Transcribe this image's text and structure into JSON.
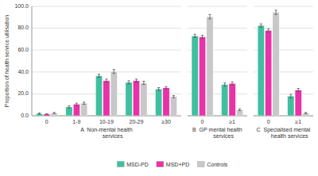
{
  "chart_data": [
    {
      "type": "bar",
      "xlabel": "A  Non-mental health\n        services",
      "ylabel": "Proportion of health service utilisation",
      "categories": [
        "0",
        "1-9",
        "10-19",
        "20-29",
        "≥30"
      ],
      "series": [
        {
          "name": "MSD-PD",
          "color": "#40bfa0",
          "values": [
            2.0,
            8.0,
            36.5,
            30.5,
            24.5
          ],
          "errors": [
            0.5,
            1.0,
            1.5,
            1.5,
            1.2
          ]
        },
        {
          "name": "MSD+PD",
          "color": "#e832a8",
          "values": [
            1.5,
            10.5,
            32.0,
            32.0,
            25.5
          ],
          "errors": [
            0.3,
            1.0,
            1.5,
            1.5,
            1.2
          ]
        },
        {
          "name": "Controls",
          "color": "#c8c8c8",
          "values": [
            2.5,
            11.5,
            40.5,
            30.0,
            17.5
          ],
          "errors": [
            0.5,
            1.0,
            1.8,
            1.5,
            1.0
          ]
        }
      ],
      "ylim": [
        0,
        100
      ],
      "yticks": [
        {
          "value": 0,
          "label": "0.0"
        },
        {
          "value": 20,
          "label": "20.0"
        },
        {
          "value": 40,
          "label": "40.0"
        },
        {
          "value": 60,
          "label": "60.0"
        },
        {
          "value": 80,
          "label": "80.0"
        },
        {
          "value": 100,
          "label": "100.0"
        }
      ],
      "grid": true,
      "legend": "bottom"
    },
    {
      "type": "bar",
      "xlabel": "B  GP mental health\n        services",
      "categories": [
        "0",
        "≥1"
      ],
      "series": [
        {
          "name": "MSD-PD",
          "color": "#40bfa0",
          "values": [
            73.0,
            28.5
          ],
          "errors": [
            1.5,
            1.5
          ]
        },
        {
          "name": "MSD+PD",
          "color": "#e832a8",
          "values": [
            72.0,
            29.5
          ],
          "errors": [
            1.5,
            1.5
          ]
        },
        {
          "name": "Controls",
          "color": "#c8c8c8",
          "values": [
            90.5,
            5.5
          ],
          "errors": [
            2.0,
            0.8
          ]
        }
      ],
      "ylim": [
        0,
        100
      ],
      "yticks": [
        0,
        20,
        40,
        60,
        80,
        100
      ],
      "grid": true,
      "tick_labels": "x"
    },
    {
      "type": "bar",
      "xlabel": "C  Specialised mental\n        health services",
      "categories": [
        "0",
        "≥1"
      ],
      "series": [
        {
          "name": "MSD-PD",
          "color": "#40bfa0",
          "values": [
            82.5,
            18.0
          ],
          "errors": [
            1.5,
            1.5
          ]
        },
        {
          "name": "MSD+PD",
          "color": "#e832a8",
          "values": [
            78.0,
            23.5
          ],
          "errors": [
            1.5,
            1.5
          ]
        },
        {
          "name": "Controls",
          "color": "#c8c8c8",
          "values": [
            94.5,
            2.5
          ],
          "errors": [
            2.0,
            0.5
          ]
        }
      ],
      "ylim": [
        0,
        100
      ],
      "yticks": [
        0,
        20,
        40,
        60,
        80,
        100
      ],
      "grid": true,
      "tick_labels": "x"
    }
  ]
}
